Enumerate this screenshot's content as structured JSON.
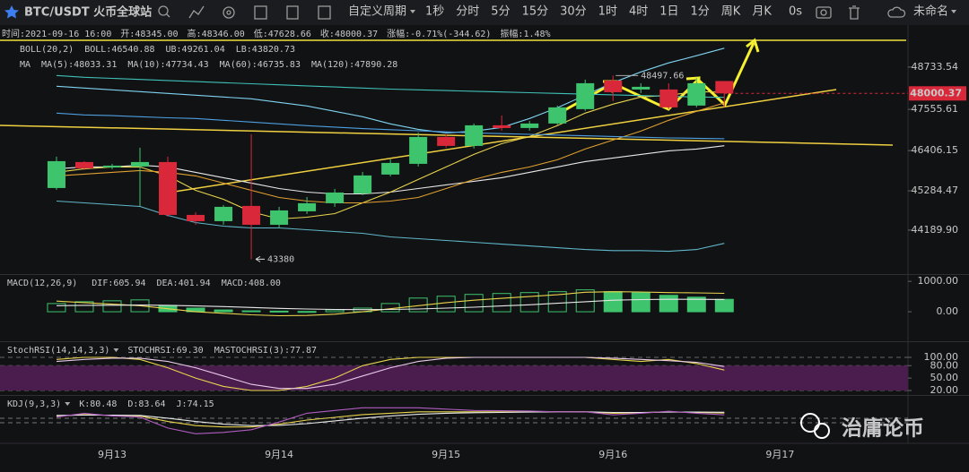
{
  "toolbar": {
    "symbol": "BTC/USDT 火币全球站",
    "period_menu": "自定义周期",
    "periods": [
      "1秒",
      "分时",
      "5分",
      "15分",
      "30分",
      "1时",
      "4时",
      "1日",
      "1分",
      "周K",
      "月K"
    ],
    "active_period": 6,
    "timer": "0s",
    "layout_name": "未命名"
  },
  "info": [
    "时间:2021-09-16 16:00",
    "开:48345.00",
    "高:48346.00",
    "低:47628.66",
    "收:48000.37",
    "涨幅:-0.71%(-344.62)",
    "振幅:1.48%"
  ],
  "watermark": "治庸论币",
  "chart_data": [
    {
      "type": "candlestick",
      "title": [
        "BOLL(20,2)",
        "MA"
      ],
      "x": [
        0,
        1,
        2,
        3,
        4,
        5,
        6,
        7,
        8,
        9,
        10,
        11,
        12,
        13,
        14,
        15,
        16,
        17,
        18,
        19,
        20,
        21,
        22,
        23,
        24
      ],
      "xlim": [
        -2.03,
        30.6
      ],
      "xticks": [
        {
          "value": 2,
          "label": "9月13"
        },
        {
          "value": 8,
          "label": "9月14"
        },
        {
          "value": 14,
          "label": "9月15"
        },
        {
          "value": 20,
          "label": "9月16"
        },
        {
          "value": 26,
          "label": "9月17"
        }
      ],
      "ylim": [
        42990,
        49480
      ],
      "yticks": [
        {
          "value": 44189.9,
          "label": "44189.90"
        },
        45284.47,
        46406.15,
        47555.61,
        48733.54
      ],
      "grid": false,
      "up_color": "#3ec46d",
      "down_color": "#d9283a",
      "open": [
        45363,
        46087,
        45937,
        45962,
        46087,
        44614,
        44439,
        44864,
        44339,
        44714,
        44939,
        45213,
        45738,
        46037,
        46787,
        46537,
        47111,
        47036,
        47161,
        47561,
        48359,
        48109,
        48109,
        47661,
        48345
      ],
      "high": [
        46237,
        46112,
        46037,
        46487,
        46237,
        44689,
        44889,
        46861,
        44839,
        45113,
        45338,
        45813,
        46162,
        46912,
        46862,
        47161,
        47386,
        47236,
        47661,
        48384,
        48497.66,
        48284,
        48284,
        48434,
        48346
      ],
      "low": [
        45313,
        45862,
        45887,
        44864,
        44564,
        44339,
        44339,
        43380,
        44239,
        44639,
        44839,
        45163,
        45688,
        45962,
        46487,
        46462,
        46961,
        46961,
        47111,
        47511,
        47786,
        48009,
        47561,
        47611,
        47628.66
      ],
      "close": [
        46112,
        45912,
        45987,
        46087,
        44614,
        44439,
        44839,
        44339,
        44739,
        44939,
        45238,
        45713,
        46062,
        46787,
        46537,
        47111,
        47036,
        47161,
        47611,
        48284,
        48034,
        48184,
        47611,
        48284,
        48000.37
      ],
      "series": [
        {
          "name": "BOLL:46540.88",
          "color": "#e8e8e8",
          "values": [
            45900,
            45950,
            45950,
            46000,
            45950,
            45800,
            45650,
            45500,
            45350,
            45250,
            45200,
            45200,
            45250,
            45350,
            45450,
            45550,
            45650,
            45800,
            45950,
            46100,
            46200,
            46300,
            46400,
            46450,
            46540.88
          ]
        },
        {
          "name": "UB:49261.04",
          "color": "#7fd3f0",
          "values": [
            48200,
            48150,
            48100,
            48050,
            48000,
            47950,
            47900,
            47850,
            47750,
            47650,
            47500,
            47350,
            47150,
            47000,
            46900,
            46950,
            47050,
            47300,
            47600,
            47950,
            48300,
            48600,
            48850,
            49050,
            49261.04
          ]
        },
        {
          "name": "LB:43820.73",
          "color": "#5fb7c9",
          "values": [
            45000,
            44950,
            44900,
            44850,
            44600,
            44400,
            44300,
            44250,
            44250,
            44200,
            44150,
            44100,
            44000,
            43950,
            43900,
            43850,
            43800,
            43750,
            43700,
            43650,
            43620,
            43620,
            43600,
            43650,
            43820.73
          ]
        },
        {
          "name": "MA(5):48033.31",
          "color": "#e8d44d",
          "values": [
            45800,
            45900,
            45950,
            45950,
            45700,
            45300,
            45050,
            44700,
            44500,
            44550,
            44650,
            44950,
            45250,
            45600,
            45950,
            46300,
            46600,
            46800,
            47100,
            47450,
            47700,
            47900,
            47950,
            48050,
            48033.31
          ]
        },
        {
          "name": "MA(10):47734.43",
          "color": "#e0a030",
          "values": [
            45700,
            45750,
            45800,
            45850,
            45800,
            45700,
            45500,
            45300,
            45100,
            45000,
            44950,
            44950,
            45000,
            45100,
            45350,
            45600,
            45800,
            45950,
            46150,
            46450,
            46700,
            46950,
            47250,
            47500,
            47734.43
          ]
        },
        {
          "name": "MA(60):46735.83",
          "color": "#4f9fe0",
          "values": [
            47450,
            47400,
            47380,
            47350,
            47320,
            47300,
            47250,
            47200,
            47150,
            47100,
            47060,
            47020,
            46990,
            46960,
            46930,
            46900,
            46880,
            46860,
            46840,
            46820,
            46800,
            46780,
            46760,
            46750,
            46735.83
          ]
        },
        {
          "name": "MA(120):47890.28",
          "color": "#40c0b8",
          "values": [
            48500,
            48450,
            48420,
            48390,
            48360,
            48330,
            48300,
            48270,
            48240,
            48210,
            48180,
            48150,
            48120,
            48100,
            48080,
            48060,
            48040,
            48020,
            48000,
            47980,
            47960,
            47940,
            47920,
            47900,
            47890.28
          ]
        }
      ]
    },
    {
      "type": "macd",
      "title": "MACD(12,26,9)",
      "ylim": [
        -940,
        1180
      ],
      "yticks": [
        {
          "value": 0,
          "label": "0.00"
        },
        {
          "value": 1000,
          "label": "1000.00"
        }
      ],
      "up_color": "#3ec46d",
      "down_color": "#d9283a",
      "series": [
        {
          "name": "DIF:605.94",
          "color": "#e8d44d",
          "values": [
            350,
            300,
            250,
            200,
            100,
            0,
            -50,
            -100,
            -130,
            -120,
            -80,
            0,
            100,
            200,
            300,
            380,
            440,
            500,
            560,
            640,
            660,
            650,
            630,
            620,
            605.94
          ]
        },
        {
          "name": "DEA:401.94",
          "color": "#e8e8e8",
          "values": [
            200,
            210,
            215,
            220,
            210,
            190,
            170,
            140,
            110,
            90,
            75,
            70,
            75,
            90,
            120,
            150,
            190,
            230,
            280,
            330,
            380,
            400,
            410,
            410,
            401.94
          ]
        }
      ],
      "histogram": {
        "name": "MACD:408.00",
        "color": "#3ec46d",
        "values": [
          270,
          330,
          360,
          390,
          210,
          120,
          60,
          30,
          20,
          10,
          60,
          120,
          270,
          450,
          510,
          570,
          600,
          630,
          660,
          720,
          660,
          630,
          540,
          480,
          408
        ]
      }
    },
    {
      "type": "line",
      "title": "StochRSI(14,14,3,3)",
      "ylim": [
        11.35,
        134.6
      ],
      "yticks": [
        {
          "value": 20,
          "label": "20.00"
        },
        {
          "value": 50,
          "label": "50.00"
        },
        {
          "value": 80,
          "label": "80.00"
        },
        {
          "value": 100,
          "label": "100.00"
        }
      ],
      "grid": true,
      "band": [
        20,
        80
      ],
      "band_color": "#4a1d4e",
      "series": [
        {
          "name": "STOCHRSI:69.30",
          "color": "#e8d44d",
          "values": [
            95,
            100,
            100,
            95,
            75,
            50,
            30,
            20,
            20,
            30,
            50,
            80,
            95,
            100,
            100,
            100,
            100,
            100,
            100,
            100,
            95,
            90,
            95,
            85,
            69.3
          ]
        },
        {
          "name": "MASTOCHRSI(3):77.87",
          "color": "#e8c8e8",
          "values": [
            90,
            95,
            98,
            98,
            90,
            75,
            55,
            35,
            25,
            25,
            35,
            55,
            75,
            90,
            98,
            100,
            100,
            100,
            100,
            100,
            98,
            95,
            92,
            88,
            77.87
          ]
        }
      ]
    },
    {
      "type": "line",
      "title": "KDJ(9,3,3)",
      "ylim": [
        -20,
        140
      ],
      "grid": false,
      "series": [
        {
          "name": "K:80.48",
          "color": "#e8d44d",
          "values": [
            70,
            75,
            72,
            70,
            50,
            35,
            30,
            30,
            40,
            55,
            65,
            75,
            80,
            85,
            85,
            85,
            85,
            85,
            85,
            85,
            80,
            82,
            85,
            83,
            80.48
          ]
        },
        {
          "name": "D:83.64",
          "color": "#e8e8e8",
          "values": [
            72,
            73,
            73,
            72,
            62,
            50,
            40,
            35,
            36,
            42,
            52,
            62,
            70,
            76,
            80,
            82,
            83,
            84,
            85,
            85,
            83,
            83,
            84,
            84,
            83.64
          ]
        },
        {
          "name": "J:74.15",
          "color": "#b05cc0",
          "values": [
            66,
            80,
            70,
            66,
            26,
            5,
            10,
            20,
            48,
            80,
            90,
            100,
            100,
            100,
            95,
            90,
            89,
            88,
            85,
            85,
            74,
            80,
            87,
            80,
            74.15
          ]
        }
      ]
    }
  ]
}
